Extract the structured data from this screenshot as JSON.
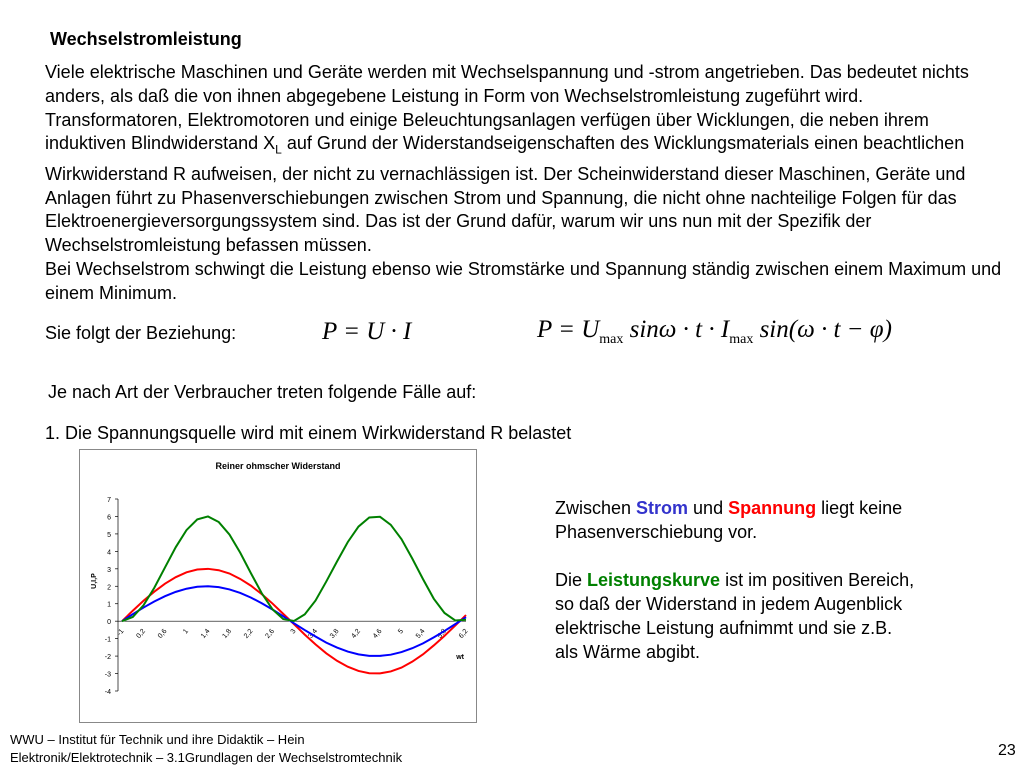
{
  "title": "Wechselstromleistung",
  "intro": {
    "p1a": "Viele elektrische Maschinen und Geräte werden mit Wechselspannung und -strom angetrieben. Das bedeutet nichts anders, als daß die von ihnen abgegebene Leistung in Form von Wechselstromleistung zugeführt wird. Transformatoren, Elektromotoren und einige Beleuchtungsanlagen verfügen über Wicklungen, die neben ihrem induktiven Blindwiderstand X",
    "p1sub": "L",
    "p1b": " auf Grund der Widerstandseigenschaften des Wicklungsmaterials einen beachtlichen Wirkwiderstand R aufweisen, der nicht zu vernachlässigen ist. Der Scheinwiderstand dieser Maschinen, Geräte und Anlagen führt zu Phasenverschiebungen zwischen Strom und Spannung, die nicht ohne nachteilige Folgen für das Elektroenergieversorgungssystem sind. Das ist der Grund dafür, warum wir uns nun mit der Spezifik der Wechselstromleistung befassen müssen.",
    "p2": "Bei Wechselstrom schwingt die Leistung ebenso wie Stromstärke und Spannung ständig zwischen einem Maximum und einem Minimum."
  },
  "relation_label": "Sie folgt der Beziehung:",
  "formula1": "P = U · I",
  "formula2": {
    "a": "P = U",
    "sub1": "max",
    "b": " sinω · t · I",
    "sub2": "max",
    "c": " sin(ω · t − φ)"
  },
  "cases_intro": "Je nach Art der Verbraucher treten folgende Fälle auf:",
  "case1": "1. Die Spannungsquelle wird mit einem Wirkwiderstand R belastet",
  "side": {
    "t1": "Zwischen ",
    "strom": "Strom",
    "t2": " und ",
    "spannung": "Spannung",
    "t3": " liegt keine Phasenverschiebung vor.",
    "t4": "Die ",
    "leistung": "Leistungskurve",
    "t5": " ist im positiven Bereich, so daß der Widerstand in jedem Augenblick elektrische Leistung aufnimmt und sie z.B. als Wärme abgibt."
  },
  "colors": {
    "strom": "#3333cc",
    "spannung": "#ff0000",
    "leistung": "#008000"
  },
  "footer": {
    "line1": "WWU – Institut für Technik und ihre Didaktik – Hein",
    "line2": "Elektronik/Elektrotechnik – 3.1Grundlagen der Wechselstromtechnik"
  },
  "page_number": "23",
  "chart_data": {
    "type": "line",
    "title": "Reiner ohmscher Widerstand",
    "xlabel": "wt",
    "ylabel": "U,I,P",
    "ylim": [
      -4,
      7
    ],
    "yticks": [
      "7",
      "6",
      "5",
      "4",
      "3",
      "2",
      "1",
      "0",
      "-1",
      "-2",
      "-3",
      "-4"
    ],
    "x": [
      0,
      0.2,
      0.4,
      0.6,
      0.8,
      1,
      1.2,
      1.4,
      1.6,
      1.8,
      2,
      2.2,
      2.4,
      2.6,
      2.8,
      3,
      3.2,
      3.4,
      3.6,
      3.8,
      4,
      4.2,
      4.4,
      4.6,
      4.8,
      5,
      5.2,
      5.4,
      5.6,
      5.8,
      6,
      6.2,
      6.4
    ],
    "xtick_labels": [
      "-1",
      "0,2",
      "0,6",
      "1",
      "1,4",
      "1,8",
      "2,2",
      "2,6",
      "3",
      "3,4",
      "3,8",
      "4,2",
      "4,6",
      "5",
      "5,4",
      "5,8",
      "6,2"
    ],
    "series": [
      {
        "key": "U",
        "color": "#ff0000",
        "values": [
          0,
          0.6,
          1.17,
          1.69,
          2.15,
          2.52,
          2.8,
          2.96,
          3,
          2.92,
          2.73,
          2.42,
          2.03,
          1.55,
          1.01,
          0.42,
          -0.17,
          -0.77,
          -1.33,
          -1.84,
          -2.27,
          -2.61,
          -2.85,
          -2.98,
          -2.99,
          -2.88,
          -2.66,
          -2.32,
          -1.9,
          -1.39,
          -0.84,
          -0.25,
          0.35
        ]
      },
      {
        "key": "I",
        "color": "#0000ff",
        "values": [
          0,
          0.4,
          0.78,
          1.13,
          1.43,
          1.68,
          1.86,
          1.97,
          2,
          1.95,
          1.82,
          1.62,
          1.35,
          1.03,
          0.67,
          0.28,
          -0.12,
          -0.51,
          -0.88,
          -1.23,
          -1.51,
          -1.74,
          -1.9,
          -1.99,
          -1.99,
          -1.92,
          -1.77,
          -1.55,
          -1.27,
          -0.93,
          -0.56,
          -0.17,
          0.23
        ]
      },
      {
        "key": "P",
        "color": "#008000",
        "values": [
          0,
          0.24,
          0.91,
          1.91,
          3.08,
          4.24,
          5.22,
          5.83,
          6,
          5.68,
          4.96,
          3.92,
          2.74,
          1.6,
          0.68,
          0.12,
          0.01,
          0.39,
          1.18,
          2.27,
          3.42,
          4.53,
          5.42,
          5.94,
          5.98,
          5.52,
          4.7,
          3.59,
          2.41,
          1.29,
          0.47,
          0.04,
          0.08
        ]
      }
    ]
  }
}
